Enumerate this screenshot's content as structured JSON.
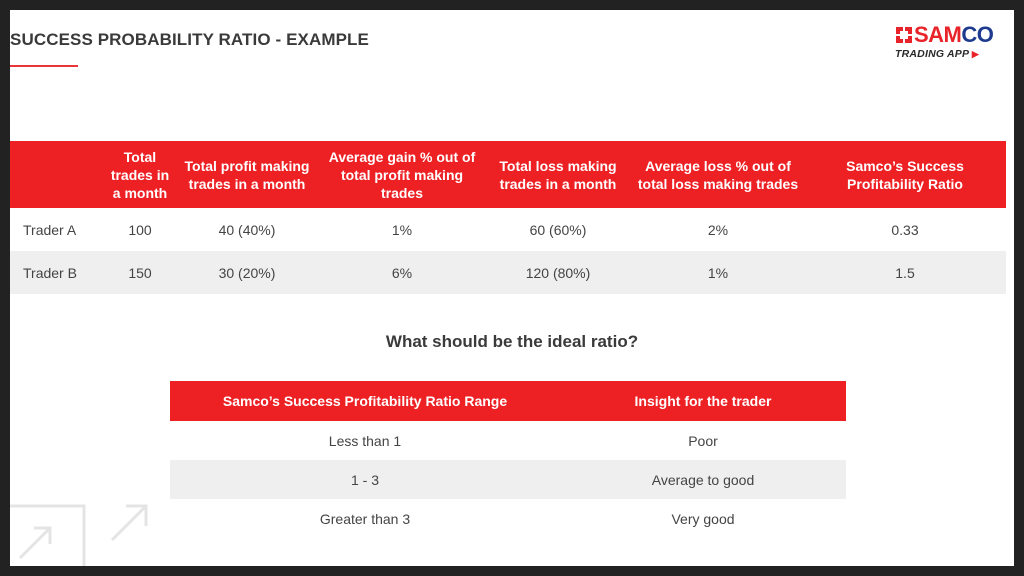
{
  "title": "SUCCESS PROBABILITY RATIO - EXAMPLE",
  "logo": {
    "brand_part1": "SAM",
    "brand_part2": "CO",
    "tagline": "TRADING APP"
  },
  "colors": {
    "accent": "#ed2024",
    "brand_blue": "#1d3a8f",
    "row_alt": "#efefef",
    "text": "#444444"
  },
  "table1": {
    "headers": [
      "",
      "Total trades in a month",
      "Total profit making trades in a month",
      "Average gain % out of total profit making trades",
      "Total loss making trades in a month",
      "Average loss % out of total loss making trades",
      "Samco’s Success Profitability Ratio"
    ],
    "rows": [
      [
        "Trader A",
        "100",
        "40 (40%)",
        "1%",
        "60 (60%)",
        "2%",
        "0.33"
      ],
      [
        "Trader B",
        "150",
        "30 (20%)",
        "6%",
        "120 (80%)",
        "1%",
        "1.5"
      ]
    ]
  },
  "subtitle": "What should be the ideal ratio?",
  "table2": {
    "headers": [
      "Samco’s Success Profitability Ratio Range",
      "Insight for the trader"
    ],
    "rows": [
      [
        "Less than 1",
        "Poor"
      ],
      [
        "1 - 3",
        "Average to good"
      ],
      [
        "Greater than 3",
        "Very good"
      ]
    ]
  }
}
